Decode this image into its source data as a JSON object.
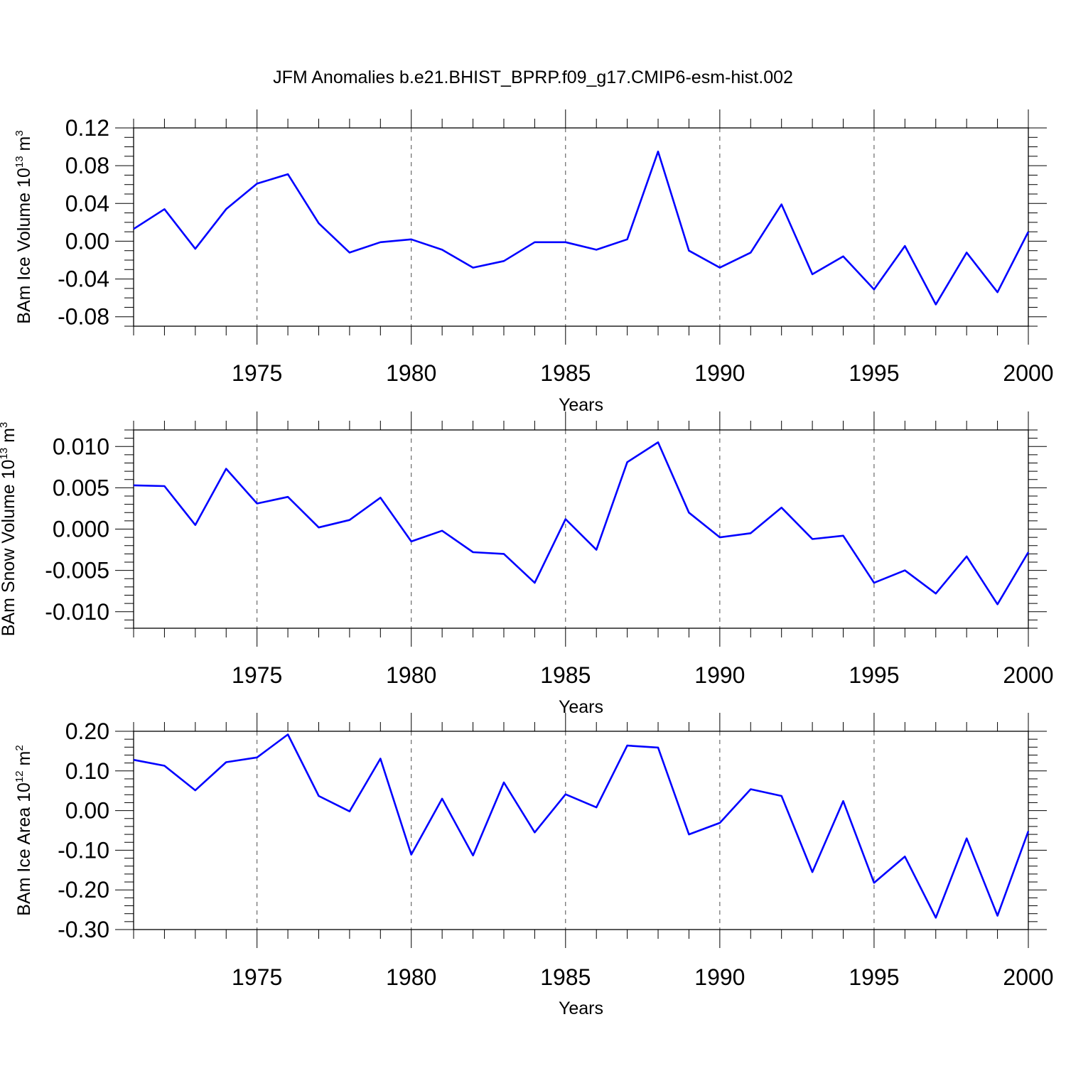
{
  "title": "JFM Anomalies b.e21.BHIST_BPRP.f09_g17.CMIP6-esm-hist.002",
  "colors": {
    "line": "#0000ff",
    "axis": "#000000",
    "grid": "#000000"
  },
  "chart_data": [
    {
      "type": "line",
      "ylabel": "BAm Ice Volume",
      "ylabel_units": "10^13 m^3",
      "ylabel_unit_base": "10",
      "ylabel_unit_exp": "13",
      "ylabel_unit_rest": "m",
      "ylabel_unit_rest_exp": "3",
      "xlabel": "Years",
      "xlim": [
        1971,
        2000
      ],
      "ylim": [
        -0.09,
        0.12
      ],
      "yticks": [
        0.12,
        0.08,
        0.04,
        0.0,
        -0.04,
        -0.08
      ],
      "ytick_labels": [
        "0.12",
        "0.08",
        "0.04",
        "0.00",
        "-0.04",
        "-0.08"
      ],
      "yminor_step": 0.01,
      "xticks": [
        1975,
        1980,
        1985,
        1990,
        1995,
        2000
      ],
      "xtick_labels": [
        "1975",
        "1980",
        "1985",
        "1990",
        "1995",
        "2000"
      ],
      "grid": "vertical dashed at major x ticks",
      "x": [
        1971,
        1972,
        1973,
        1974,
        1975,
        1976,
        1977,
        1978,
        1979,
        1980,
        1981,
        1982,
        1983,
        1984,
        1985,
        1986,
        1987,
        1988,
        1989,
        1990,
        1991,
        1992,
        1993,
        1994,
        1995,
        1996,
        1997,
        1998,
        1999,
        2000
      ],
      "series": [
        {
          "values": [
            0.013,
            0.034,
            -0.008,
            0.034,
            0.061,
            0.071,
            0.019,
            -0.012,
            -0.001,
            0.002,
            -0.009,
            -0.028,
            -0.021,
            -0.001,
            -0.001,
            -0.009,
            0.002,
            0.095,
            -0.01,
            -0.028,
            -0.012,
            0.039,
            -0.035,
            -0.016,
            -0.051,
            -0.005,
            -0.067,
            -0.012,
            -0.054,
            0.01
          ]
        }
      ]
    },
    {
      "type": "line",
      "ylabel": "BAm Snow Volume",
      "ylabel_units": "10^13 m^3",
      "ylabel_unit_base": "10",
      "ylabel_unit_exp": "13",
      "ylabel_unit_rest": "m",
      "ylabel_unit_rest_exp": "3",
      "xlabel": "Years",
      "xlim": [
        1971,
        2000
      ],
      "ylim": [
        -0.012,
        0.012
      ],
      "yticks": [
        0.01,
        0.005,
        0.0,
        -0.005,
        -0.01
      ],
      "ytick_labels": [
        "0.010",
        "0.005",
        "0.000",
        "-0.005",
        "-0.010"
      ],
      "yminor_step": 0.001,
      "xticks": [
        1975,
        1980,
        1985,
        1990,
        1995,
        2000
      ],
      "xtick_labels": [
        "1975",
        "1980",
        "1985",
        "1990",
        "1995",
        "2000"
      ],
      "grid": "vertical dashed at major x ticks",
      "x": [
        1971,
        1972,
        1973,
        1974,
        1975,
        1976,
        1977,
        1978,
        1979,
        1980,
        1981,
        1982,
        1983,
        1984,
        1985,
        1986,
        1987,
        1988,
        1989,
        1990,
        1991,
        1992,
        1993,
        1994,
        1995,
        1996,
        1997,
        1998,
        1999,
        2000
      ],
      "series": [
        {
          "values": [
            0.0053,
            0.0052,
            0.0005,
            0.0073,
            0.0031,
            0.0039,
            0.0002,
            0.0011,
            0.0038,
            -0.0015,
            -0.0002,
            -0.0028,
            -0.003,
            -0.0065,
            0.0012,
            -0.0025,
            0.0081,
            0.0105,
            0.002,
            -0.001,
            -0.0005,
            0.0026,
            -0.0012,
            -0.0008,
            -0.0065,
            -0.005,
            -0.0078,
            -0.0033,
            -0.0091,
            -0.0028
          ]
        }
      ]
    },
    {
      "type": "line",
      "ylabel": "BAm Ice Area",
      "ylabel_units": "10^12 m^2",
      "ylabel_unit_base": "10",
      "ylabel_unit_exp": "12",
      "ylabel_unit_rest": "m",
      "ylabel_unit_rest_exp": "2",
      "xlabel": "Years",
      "xlim": [
        1971,
        2000
      ],
      "ylim": [
        -0.3,
        0.2
      ],
      "yticks": [
        0.2,
        0.1,
        0.0,
        -0.1,
        -0.2,
        -0.3
      ],
      "ytick_labels": [
        "0.20",
        "0.10",
        "0.00",
        "-0.10",
        "-0.20",
        "-0.30"
      ],
      "yminor_step": 0.02,
      "xticks": [
        1975,
        1980,
        1985,
        1990,
        1995,
        2000
      ],
      "xtick_labels": [
        "1975",
        "1980",
        "1985",
        "1990",
        "1995",
        "2000"
      ],
      "grid": "vertical dashed at major x ticks",
      "x": [
        1971,
        1972,
        1973,
        1974,
        1975,
        1976,
        1977,
        1978,
        1979,
        1980,
        1981,
        1982,
        1983,
        1984,
        1985,
        1986,
        1987,
        1988,
        1989,
        1990,
        1991,
        1992,
        1993,
        1994,
        1995,
        1996,
        1997,
        1998,
        1999,
        2000
      ],
      "series": [
        {
          "values": [
            0.128,
            0.113,
            0.051,
            0.122,
            0.134,
            0.192,
            0.037,
            -0.002,
            0.131,
            -0.111,
            0.03,
            -0.113,
            0.071,
            -0.055,
            0.041,
            0.008,
            0.164,
            0.159,
            -0.06,
            -0.031,
            0.054,
            0.037,
            -0.155,
            0.024,
            -0.182,
            -0.116,
            -0.27,
            -0.07,
            -0.265,
            -0.052
          ]
        }
      ]
    }
  ]
}
